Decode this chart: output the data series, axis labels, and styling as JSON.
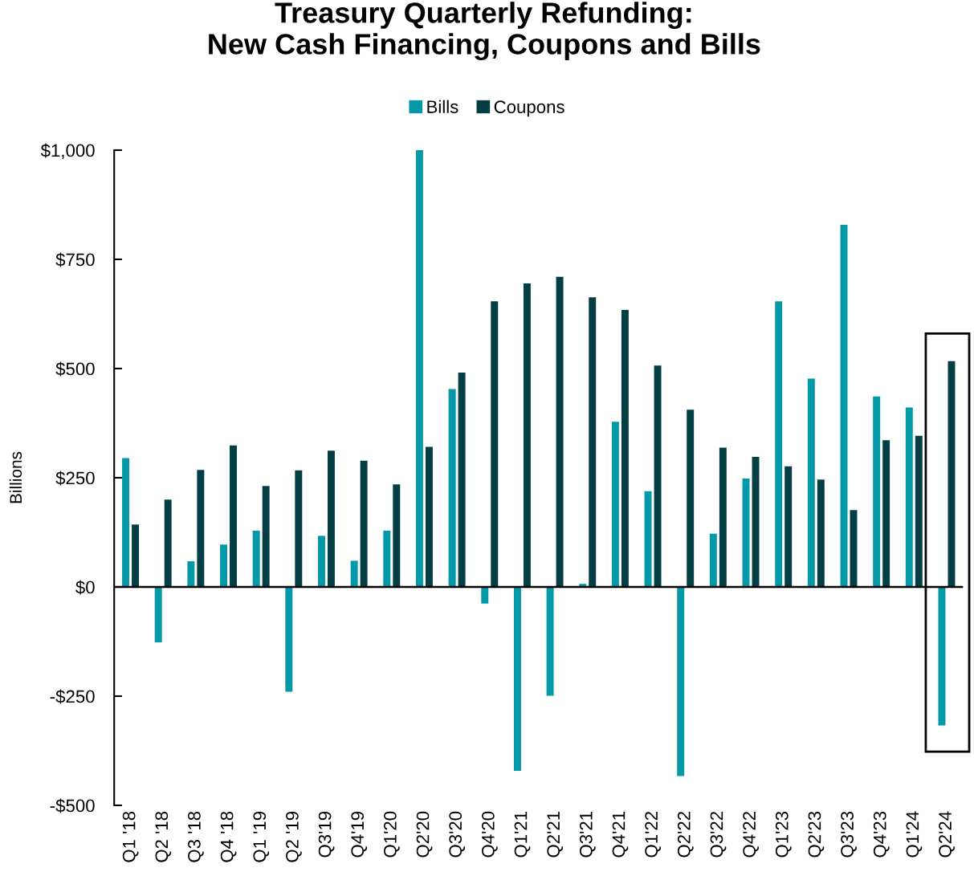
{
  "chart_data": {
    "type": "bar",
    "title": "Treasury Quarterly Refunding:\nNew Cash Financing, Coupons and Bills",
    "ylabel": "Billions",
    "categories": [
      "Q1 '18",
      "Q2 '18",
      "Q3 '18",
      "Q4 '18",
      "Q1 '19",
      "Q2 '19",
      "Q3'19",
      "Q4'19",
      "Q1'20",
      "Q2'20",
      "Q3'20",
      "Q4'20",
      "Q1'21",
      "Q2'21",
      "Q3'21",
      "Q4'21",
      "Q1'22",
      "Q2'22",
      "Q3'22",
      "Q4'22",
      "Q1'23",
      "Q2'23",
      "Q3'23",
      "Q4'23",
      "Q1'24",
      "Q2'24"
    ],
    "series": [
      {
        "name": "Bills",
        "color": "#0399a9",
        "values": [
          295,
          -127,
          59,
          97,
          129,
          -240,
          117,
          60,
          129,
          1000,
          453,
          -38,
          -421,
          -249,
          7,
          378,
          219,
          -433,
          122,
          248,
          654,
          477,
          829,
          436,
          411,
          -317
        ]
      },
      {
        "name": "Coupons",
        "color": "#023e44",
        "values": [
          143,
          200,
          268,
          324,
          231,
          267,
          312,
          289,
          235,
          321,
          491,
          654,
          695,
          710,
          663,
          634,
          507,
          406,
          319,
          298,
          276,
          246,
          176,
          336,
          346,
          517
        ]
      }
    ],
    "ylim": [
      -500,
      1000
    ],
    "yticks": [
      {
        "value": -500,
        "label": "-$500"
      },
      {
        "value": -250,
        "label": "-$250"
      },
      {
        "value": 0,
        "label": "$0"
      },
      {
        "value": 250,
        "label": "$250"
      },
      {
        "value": 500,
        "label": "$500"
      },
      {
        "value": 750,
        "label": "$750"
      },
      {
        "value": 1000,
        "label": "$1,000"
      }
    ],
    "ref_lines": [
      {
        "axis": "y",
        "value": 0,
        "color": "#000000"
      }
    ],
    "legend": "top",
    "grid": false
  }
}
